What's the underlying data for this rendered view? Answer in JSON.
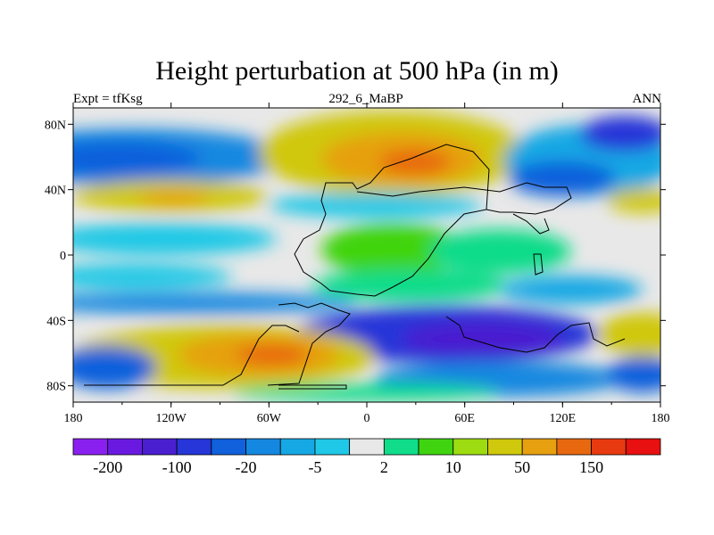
{
  "title": "Height perturbation at 500 hPa (in m)",
  "subtitle_left": "Expt = tfKsg",
  "subtitle_center": "292_6_MaBP",
  "subtitle_right": "ANN",
  "map": {
    "x_ticks": [
      "180",
      "120W",
      "60W",
      "0",
      "60E",
      "120E",
      "180"
    ],
    "y_ticks": [
      "80N",
      "40N",
      "0",
      "40S",
      "80S"
    ],
    "lon_range": [
      -180,
      180
    ],
    "lat_range": [
      -90,
      90
    ]
  },
  "colorbar": {
    "colors": [
      "#8a20f0",
      "#6a1ae0",
      "#4a1fd0",
      "#2636d8",
      "#1160dc",
      "#1488e0",
      "#16a8e4",
      "#1fc8e6",
      "#e8e8e8",
      "#10dc8a",
      "#40d410",
      "#9cdc10",
      "#d0c80c",
      "#e6a010",
      "#e86810",
      "#e83a10",
      "#e81010"
    ],
    "labels": [
      "-200",
      "-100",
      "-20",
      "-5",
      "2",
      "10",
      "50",
      "150"
    ]
  }
}
